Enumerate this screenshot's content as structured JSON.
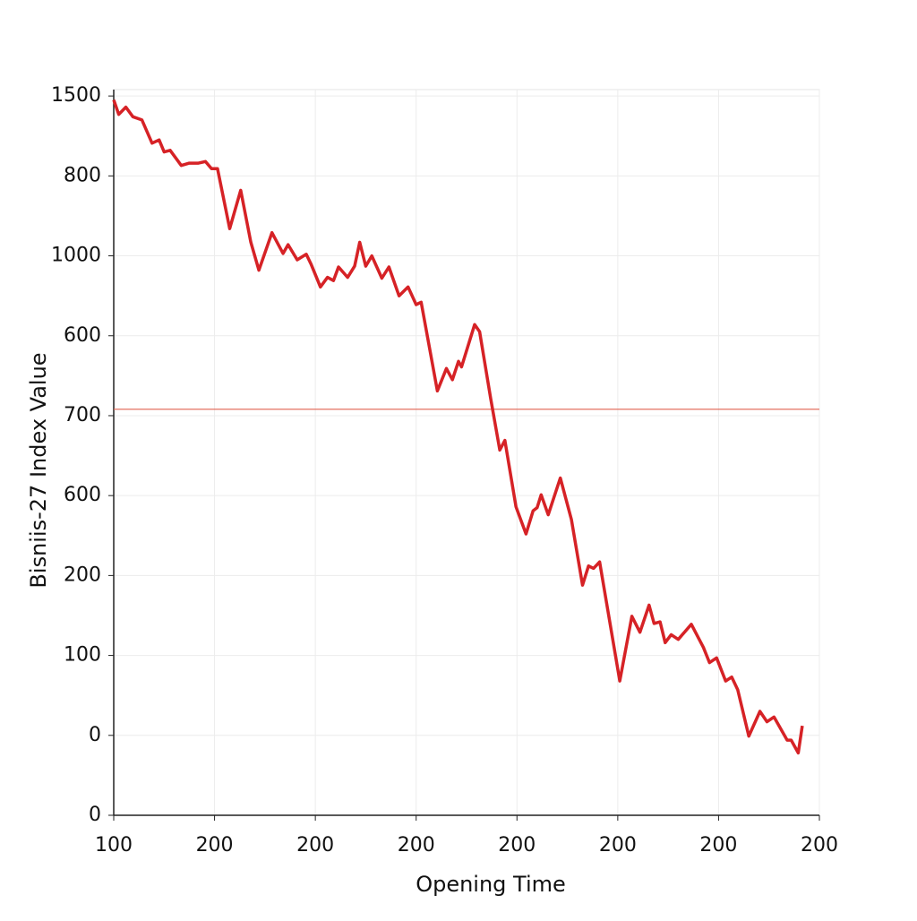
{
  "chart_data": {
    "type": "line",
    "x_label": "Opening Time",
    "y_label": "Bisniis-27 Index Value",
    "xlim": [
      0,
      7
    ],
    "xticks": [
      {
        "value": 0,
        "label": "100"
      },
      {
        "value": 1,
        "label": "200"
      },
      {
        "value": 2,
        "label": "200"
      },
      {
        "value": 3,
        "label": "200"
      },
      {
        "value": 4,
        "label": "200"
      },
      {
        "value": 5,
        "label": "200"
      },
      {
        "value": 6,
        "label": "200"
      },
      {
        "value": 7,
        "label": "200"
      }
    ],
    "ylim": [
      0,
      908
    ],
    "yticks": [
      0,
      {
        "value": 100,
        "label": "0"
      },
      {
        "value": 200,
        "label": "100"
      },
      {
        "value": 300,
        "label": "200"
      },
      {
        "value": 400,
        "label": "600"
      },
      {
        "value": 500,
        "label": "700"
      },
      {
        "value": 600,
        "label": "600"
      },
      {
        "value": 700,
        "label": "1000"
      },
      {
        "value": 800,
        "label": "800"
      },
      {
        "value": 900,
        "label": "1500"
      }
    ],
    "grid": true,
    "reference_line": {
      "value": 508,
      "color": "#e0604f"
    },
    "series": [
      {
        "color": "#d62226",
        "x": [
          0.0,
          0.05,
          0.12,
          0.19,
          0.28,
          0.38,
          0.45,
          0.5,
          0.56,
          0.67,
          0.75,
          0.84,
          0.91,
          0.97,
          1.03,
          1.15,
          1.26,
          1.36,
          1.44,
          1.57,
          1.68,
          1.73,
          1.82,
          1.91,
          1.96,
          2.05,
          2.12,
          2.18,
          2.23,
          2.32,
          2.39,
          2.44,
          2.5,
          2.56,
          2.66,
          2.73,
          2.83,
          2.92,
          3.0,
          3.05,
          3.21,
          3.3,
          3.36,
          3.42,
          3.45,
          3.58,
          3.63,
          3.74,
          3.83,
          3.88,
          3.99,
          4.09,
          4.16,
          4.2,
          4.24,
          4.31,
          4.43,
          4.54,
          4.65,
          4.71,
          4.76,
          4.82,
          5.02,
          5.14,
          5.22,
          5.31,
          5.36,
          5.42,
          5.47,
          5.53,
          5.6,
          5.73,
          5.85,
          5.91,
          5.98,
          6.07,
          6.13,
          6.19,
          6.3,
          6.41,
          6.48,
          6.55,
          6.68,
          6.72,
          6.79,
          6.83
        ],
        "values": [
          895,
          877,
          886,
          874,
          870,
          841,
          845,
          830,
          832,
          813,
          816,
          816,
          818,
          809,
          809,
          734,
          782,
          717,
          682,
          729,
          703,
          714,
          695,
          702,
          689,
          661,
          673,
          669,
          686,
          673,
          687,
          717,
          687,
          700,
          672,
          686,
          650,
          661,
          639,
          642,
          531,
          559,
          545,
          568,
          561,
          614,
          605,
          521,
          457,
          469,
          386,
          352,
          381,
          385,
          401,
          376,
          422,
          370,
          288,
          312,
          309,
          317,
          168,
          249,
          229,
          263,
          240,
          242,
          216,
          226,
          220,
          239,
          210,
          191,
          197,
          168,
          173,
          157,
          99,
          130,
          117,
          123,
          94,
          94,
          78,
          112
        ]
      }
    ]
  }
}
